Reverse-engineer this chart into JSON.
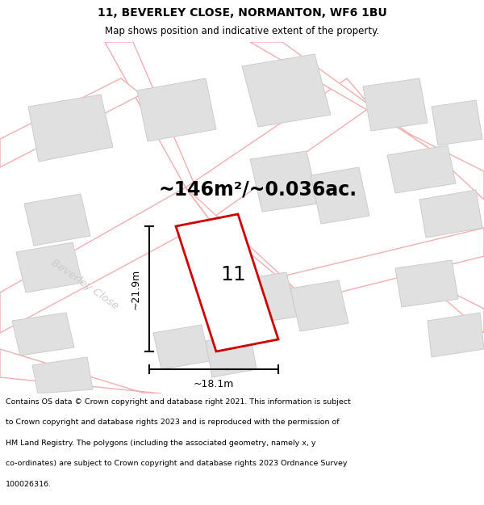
{
  "title_line1": "11, BEVERLEY CLOSE, NORMANTON, WF6 1BU",
  "title_line2": "Map shows position and indicative extent of the property.",
  "area_text": "~146m²/~0.036ac.",
  "property_number": "11",
  "dim_height": "~21.9m",
  "dim_width": "~18.1m",
  "street_label": "Beverley Close",
  "footer_lines": [
    "Contains OS data © Crown copyright and database right 2021. This information is subject",
    "to Crown copyright and database rights 2023 and is reproduced with the permission of",
    "HM Land Registry. The polygons (including the associated geometry, namely x, y",
    "co-ordinates) are subject to Crown copyright and database rights 2023 Ordnance Survey",
    "100026316."
  ],
  "map_bg": "#ffffff",
  "plot_color_fill": "#f0f0f0",
  "plot_color_edge": "#cc0000",
  "building_fill": "#e0e0e0",
  "building_edge": "#cccccc",
  "road_color": "#f0b0b0",
  "road_fill": "#ffffff",
  "title_fontsize": 10,
  "area_fontsize": 17,
  "footer_fontsize": 6.8,
  "street_color": "#cccccc"
}
